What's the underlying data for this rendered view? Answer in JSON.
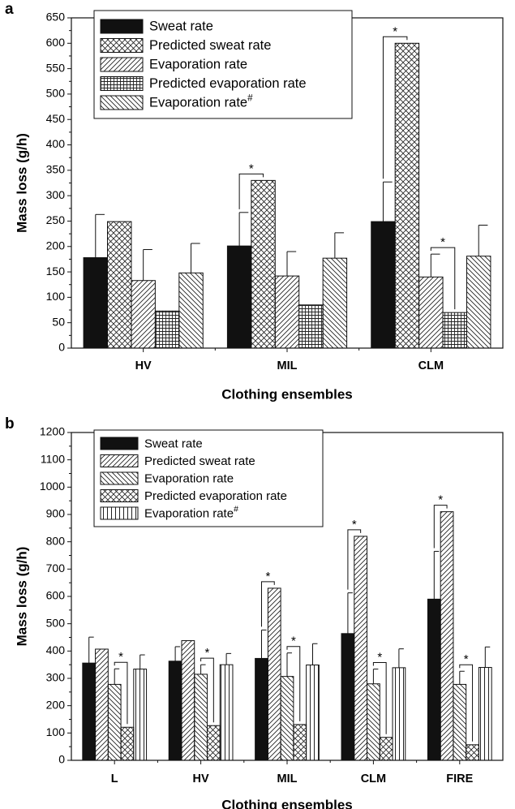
{
  "chart_data": [
    {
      "type": "bar",
      "panel_letter": "a",
      "xlabel": "Clothing ensembles",
      "ylabel": "Mass loss (g/h)",
      "ylim": [
        0,
        650
      ],
      "yticks": [
        0,
        50,
        100,
        150,
        200,
        250,
        300,
        350,
        400,
        450,
        500,
        550,
        600,
        650
      ],
      "categories": [
        "HV",
        "MIL",
        "CLM"
      ],
      "legend_position": "top-left",
      "series": [
        {
          "name": "Sweat rate",
          "name_sup": "",
          "pattern": "solid",
          "values": [
            178,
            201,
            249
          ],
          "errors": [
            85,
            66,
            78
          ]
        },
        {
          "name": "Predicted sweat rate",
          "name_sup": "",
          "pattern": "crosshatch",
          "values": [
            249,
            330,
            600
          ],
          "errors": [
            0,
            0,
            0
          ]
        },
        {
          "name": "Evaporation rate",
          "name_sup": "",
          "pattern": "diag",
          "values": [
            133,
            142,
            140
          ],
          "errors": [
            61,
            48,
            45
          ]
        },
        {
          "name": "Predicted evaporation rate",
          "name_sup": "",
          "pattern": "grid",
          "values": [
            73,
            85,
            70
          ],
          "errors": [
            0,
            0,
            0
          ]
        },
        {
          "name": "Evaporation rate",
          "name_sup": "#",
          "pattern": "backdiag",
          "values": [
            148,
            177,
            181
          ],
          "errors": [
            58,
            50,
            61
          ]
        }
      ],
      "significance": [
        {
          "category": 1,
          "from": 0,
          "to": 1,
          "label": "*"
        },
        {
          "category": 2,
          "from": 0,
          "to": 1,
          "label": "*"
        },
        {
          "category": 2,
          "from": 2,
          "to": 3,
          "label": "*"
        }
      ]
    },
    {
      "type": "bar",
      "panel_letter": "b",
      "xlabel": "Clothing ensembles",
      "ylabel": "Mass loss (g/h)",
      "ylim": [
        0,
        1200
      ],
      "yticks": [
        0,
        100,
        200,
        300,
        400,
        500,
        600,
        700,
        800,
        900,
        1000,
        1100,
        1200
      ],
      "categories": [
        "L",
        "HV",
        "MIL",
        "CLM",
        "FIRE"
      ],
      "legend_position": "top-left",
      "series": [
        {
          "name": "Sweat rate",
          "name_sup": "",
          "pattern": "solid",
          "values": [
            356,
            363,
            373,
            464,
            590
          ],
          "errors": [
            95,
            53,
            104,
            149,
            175
          ]
        },
        {
          "name": "Predicted sweat rate",
          "name_sup": "",
          "pattern": "diag",
          "values": [
            407,
            438,
            630,
            820,
            910
          ],
          "errors": [
            0,
            0,
            0,
            0,
            0
          ]
        },
        {
          "name": "Evaporation rate",
          "name_sup": "",
          "pattern": "backdiag",
          "values": [
            278,
            315,
            307,
            280,
            278
          ],
          "errors": [
            57,
            35,
            86,
            54,
            48
          ]
        },
        {
          "name": "Predicted evaporation rate",
          "name_sup": "",
          "pattern": "crosshatch",
          "values": [
            121,
            127,
            131,
            84,
            57
          ],
          "errors": [
            0,
            0,
            0,
            0,
            0
          ]
        },
        {
          "name": "Evaporation rate",
          "name_sup": "#",
          "pattern": "vertical",
          "values": [
            334,
            350,
            349,
            339,
            340
          ],
          "errors": [
            52,
            41,
            78,
            69,
            75
          ]
        }
      ],
      "significance": [
        {
          "category": 0,
          "from": 2,
          "to": 3,
          "label": "*"
        },
        {
          "category": 1,
          "from": 2,
          "to": 3,
          "label": "*"
        },
        {
          "category": 2,
          "from": 0,
          "to": 1,
          "label": "*"
        },
        {
          "category": 2,
          "from": 2,
          "to": 3,
          "label": "*"
        },
        {
          "category": 3,
          "from": 0,
          "to": 1,
          "label": "*"
        },
        {
          "category": 3,
          "from": 2,
          "to": 3,
          "label": "*"
        },
        {
          "category": 4,
          "from": 0,
          "to": 1,
          "label": "*"
        },
        {
          "category": 4,
          "from": 2,
          "to": 3,
          "label": "*"
        }
      ]
    }
  ]
}
